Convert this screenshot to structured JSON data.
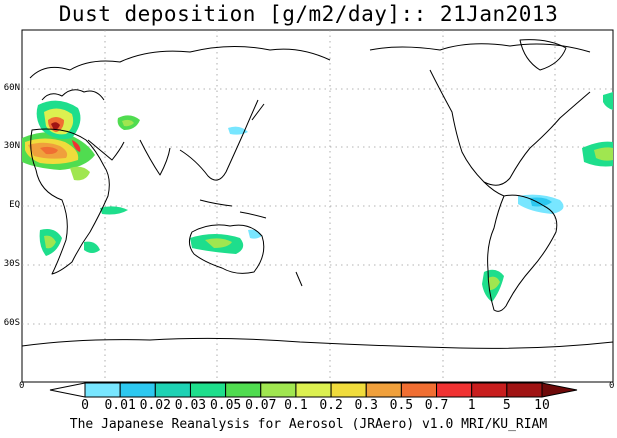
{
  "title": "Dust deposition [g/m2/day]:: 21Jan2013",
  "footer": "The Japanese Reanalysis for Aerosol (JRAero) v1.0 MRI/KU_RIAM",
  "lat_labels": [
    "60N",
    "30N",
    "EQ",
    "30S",
    "60S"
  ],
  "edge_labels": {
    "left": "0",
    "right": "0"
  },
  "colorbar": {
    "labels": [
      "0",
      "0.01",
      "0.02",
      "0.03",
      "0.05",
      "0.07",
      "0.1",
      "0.2",
      "0.3",
      "0.5",
      "0.7",
      "1",
      "5",
      "10"
    ],
    "colors": [
      "#ffffff",
      "#78e6ff",
      "#2dc8f0",
      "#1ed2b4",
      "#1ede8c",
      "#50dc50",
      "#a0e650",
      "#dcf050",
      "#f0dc3c",
      "#f0a03c",
      "#f06e32",
      "#f03232",
      "#c81e1e",
      "#a01414",
      "#6e0a0a"
    ]
  }
}
